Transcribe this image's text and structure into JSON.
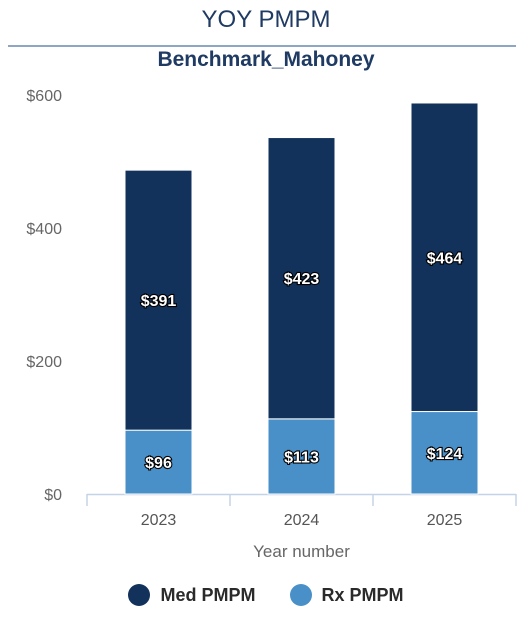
{
  "chart_data": {
    "type": "bar",
    "stacked": true,
    "title": "YOY PMPM",
    "subtitle": "Benchmark_Mahoney",
    "xlabel": "Year number",
    "ylabel": "",
    "categories": [
      "2023",
      "2024",
      "2025"
    ],
    "ylim": [
      0,
      600
    ],
    "y_ticks": [
      0,
      200,
      400,
      600
    ],
    "y_tick_labels": [
      "$0",
      "$200",
      "$400",
      "$600"
    ],
    "grid": false,
    "legend_position": "bottom",
    "series": [
      {
        "name": "Rx PMPM",
        "color": "#4a90c8",
        "values": [
          96,
          113,
          124
        ],
        "labels": [
          "$96",
          "$113",
          "$124"
        ]
      },
      {
        "name": "Med PMPM",
        "color": "#12325b",
        "values": [
          391,
          423,
          464
        ],
        "labels": [
          "$391",
          "$423",
          "$464"
        ]
      }
    ],
    "legend": [
      {
        "name": "Med PMPM",
        "color": "#12325b"
      },
      {
        "name": "Rx PMPM",
        "color": "#4a90c8"
      }
    ]
  }
}
